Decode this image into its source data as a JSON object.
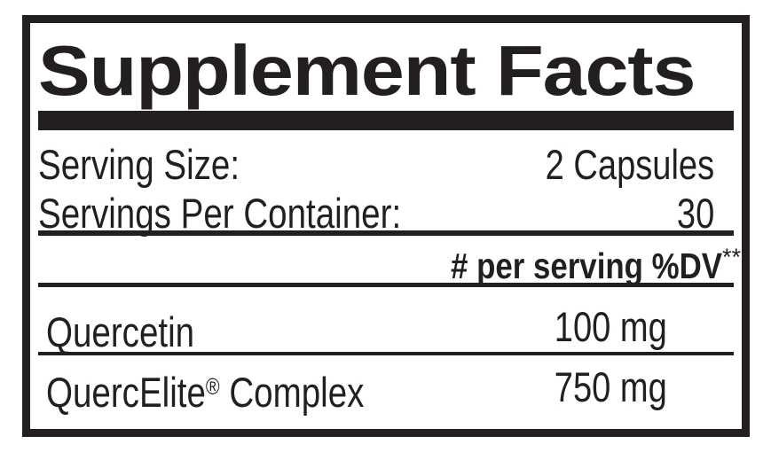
{
  "label": {
    "title": "Supplement Facts",
    "serving_size": {
      "name": "Serving Size:",
      "value": "2 Capsules"
    },
    "servings_per_container": {
      "name": "Servings Per Container:",
      "value": "30"
    },
    "column_header": {
      "text": "# per serving %DV",
      "footnote_marker": "**"
    },
    "ingredients": [
      {
        "name": "Quercetin",
        "trademark": "",
        "name_suffix": "",
        "amount": "100 mg"
      },
      {
        "name": "QuercElite",
        "trademark": "®",
        "name_suffix": " Complex",
        "amount": "750 mg"
      }
    ],
    "colors": {
      "ink": "#231f20",
      "background": "#ffffff"
    }
  }
}
